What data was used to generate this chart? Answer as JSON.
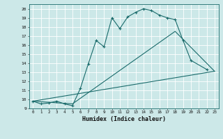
{
  "xlabel": "Humidex (Indice chaleur)",
  "bg_color": "#cce8e8",
  "line_color": "#1a6b6b",
  "grid_color": "#ffffff",
  "xlim": [
    -0.5,
    23.5
  ],
  "ylim": [
    9,
    20.5
  ],
  "xticks": [
    0,
    1,
    2,
    3,
    4,
    5,
    6,
    7,
    8,
    9,
    10,
    11,
    12,
    13,
    14,
    15,
    16,
    17,
    18,
    19,
    20,
    21,
    22,
    23
  ],
  "yticks": [
    9,
    10,
    11,
    12,
    13,
    14,
    15,
    16,
    17,
    18,
    19,
    20
  ],
  "line1_x": [
    0,
    1,
    2,
    3,
    4,
    5,
    6,
    7,
    8,
    9,
    10,
    11,
    12,
    13,
    14,
    15,
    16,
    17,
    18,
    19,
    20,
    22
  ],
  "line1_y": [
    9.8,
    9.5,
    9.6,
    9.8,
    9.5,
    9.3,
    11.2,
    13.9,
    16.5,
    15.8,
    19.0,
    17.8,
    19.1,
    19.6,
    20.0,
    19.8,
    19.3,
    19.0,
    18.8,
    16.5,
    14.3,
    13.3
  ],
  "line2_x": [
    0,
    5,
    18,
    23
  ],
  "line2_y": [
    9.8,
    9.5,
    17.5,
    13.1
  ],
  "line3_x": [
    0,
    23
  ],
  "line3_y": [
    9.8,
    13.1
  ],
  "figsize": [
    3.2,
    2.0
  ],
  "dpi": 100
}
